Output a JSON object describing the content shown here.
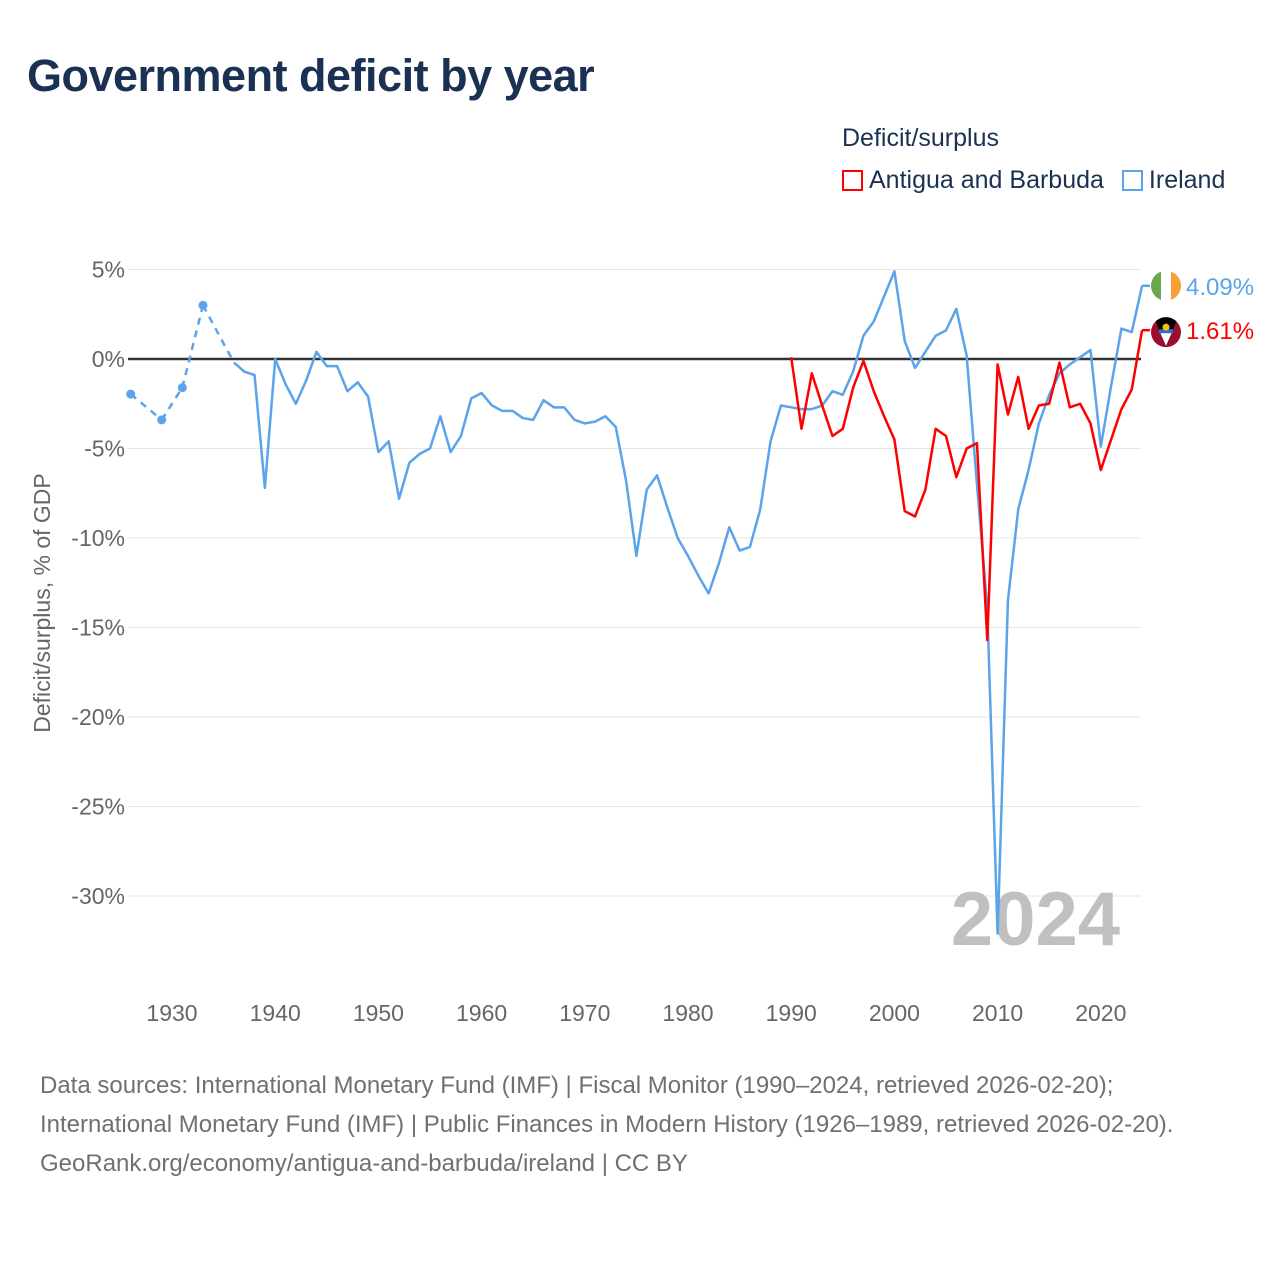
{
  "title": "Government deficit by year",
  "legend": {
    "title": "Deficit/surplus"
  },
  "watermark": "2024",
  "footer": {
    "sources": "Data sources: International Monetary Fund (IMF) | Fiscal Monitor (1990–2024, retrieved 2026-02-20); International Monetary Fund (IMF) | Public Finances in Modern History (1926–1989, retrieved 2026-02-20).",
    "credit": "GeoRank.org/economy/antigua-and-barbuda/ireland | CC BY"
  },
  "chart_data": {
    "type": "line",
    "title": "Government deficit by year",
    "xlabel": "",
    "ylabel": "Deficit/surplus, % of GDP",
    "xlim": [
      1926,
      2024
    ],
    "ylim": [
      -33,
      5
    ],
    "x_ticks": [
      1930,
      1940,
      1950,
      1960,
      1970,
      1980,
      1990,
      2000,
      2010,
      2020
    ],
    "y_ticks": [
      5,
      0,
      -5,
      -10,
      -15,
      -20,
      -25,
      -30
    ],
    "y_tick_labels": [
      "5%",
      "0%",
      "-5%",
      "-10%",
      "-15%",
      "-20%",
      "-25%",
      "-30%"
    ],
    "grid": true,
    "legend_position": "top-right",
    "series": [
      {
        "name": "Antigua and Barbuda",
        "color": "#ff0000",
        "end_label": "1.61%",
        "x": [
          1990,
          1991,
          1992,
          1993,
          1994,
          1995,
          1996,
          1997,
          1998,
          1999,
          2000,
          2001,
          2002,
          2003,
          2004,
          2005,
          2006,
          2007,
          2008,
          2009,
          2010,
          2011,
          2012,
          2013,
          2014,
          2015,
          2016,
          2017,
          2018,
          2019,
          2020,
          2021,
          2022,
          2023,
          2024
        ],
        "values": [
          0.1,
          -3.9,
          -0.8,
          -2.6,
          -4.3,
          -3.9,
          -1.6,
          -0.1,
          -1.8,
          -3.2,
          -4.5,
          -8.5,
          -8.8,
          -7.3,
          -3.9,
          -4.3,
          -6.6,
          -5.0,
          -4.7,
          -15.7,
          -0.3,
          -3.1,
          -1.0,
          -3.9,
          -2.6,
          -2.5,
          -0.2,
          -2.7,
          -2.5,
          -3.6,
          -6.2,
          -4.5,
          -2.8,
          -1.7,
          1.61
        ]
      },
      {
        "name": "Ireland",
        "color": "#5ba3ea",
        "end_label": "4.09%",
        "x": [
          1926,
          1929,
          1931,
          1933,
          1936,
          1937,
          1938,
          1939,
          1940,
          1941,
          1942,
          1943,
          1944,
          1945,
          1946,
          1947,
          1948,
          1949,
          1950,
          1951,
          1952,
          1953,
          1954,
          1955,
          1956,
          1957,
          1958,
          1959,
          1960,
          1961,
          1962,
          1963,
          1964,
          1965,
          1966,
          1967,
          1968,
          1969,
          1970,
          1971,
          1972,
          1973,
          1974,
          1975,
          1976,
          1977,
          1978,
          1979,
          1980,
          1981,
          1982,
          1983,
          1984,
          1985,
          1986,
          1987,
          1988,
          1989,
          1990,
          1991,
          1992,
          1993,
          1994,
          1995,
          1996,
          1997,
          1998,
          1999,
          2000,
          2001,
          2002,
          2003,
          2004,
          2005,
          2006,
          2007,
          2008,
          2009,
          2010,
          2011,
          2012,
          2013,
          2014,
          2015,
          2016,
          2017,
          2018,
          2019,
          2020,
          2021,
          2022,
          2023,
          2024
        ],
        "values": [
          -1.96,
          -3.4,
          -1.6,
          3.0,
          -0.2,
          -0.7,
          -0.9,
          -7.2,
          0.0,
          -1.4,
          -2.5,
          -1.2,
          0.4,
          -0.4,
          -0.4,
          -1.8,
          -1.3,
          -2.1,
          -5.2,
          -4.6,
          -7.8,
          -5.8,
          -5.3,
          -5.0,
          -3.2,
          -5.2,
          -4.3,
          -2.2,
          -1.9,
          -2.6,
          -2.9,
          -2.9,
          -3.3,
          -3.4,
          -2.3,
          -2.7,
          -2.7,
          -3.4,
          -3.6,
          -3.5,
          -3.2,
          -3.8,
          -6.8,
          -11.0,
          -7.3,
          -6.5,
          -8.3,
          -10.0,
          -11.0,
          -12.1,
          -13.1,
          -11.4,
          -9.4,
          -10.7,
          -10.5,
          -8.4,
          -4.6,
          -2.6,
          -2.7,
          -2.8,
          -2.8,
          -2.6,
          -1.8,
          -2.0,
          -0.7,
          1.3,
          2.1,
          3.5,
          4.9,
          1.0,
          -0.5,
          0.4,
          1.3,
          1.6,
          2.8,
          0.2,
          -7.0,
          -13.9,
          -32.1,
          -13.5,
          -8.4,
          -6.2,
          -3.6,
          -2.0,
          -0.8,
          -0.3,
          0.1,
          0.5,
          -4.9,
          -1.5,
          1.7,
          1.5,
          4.09
        ]
      }
    ]
  }
}
